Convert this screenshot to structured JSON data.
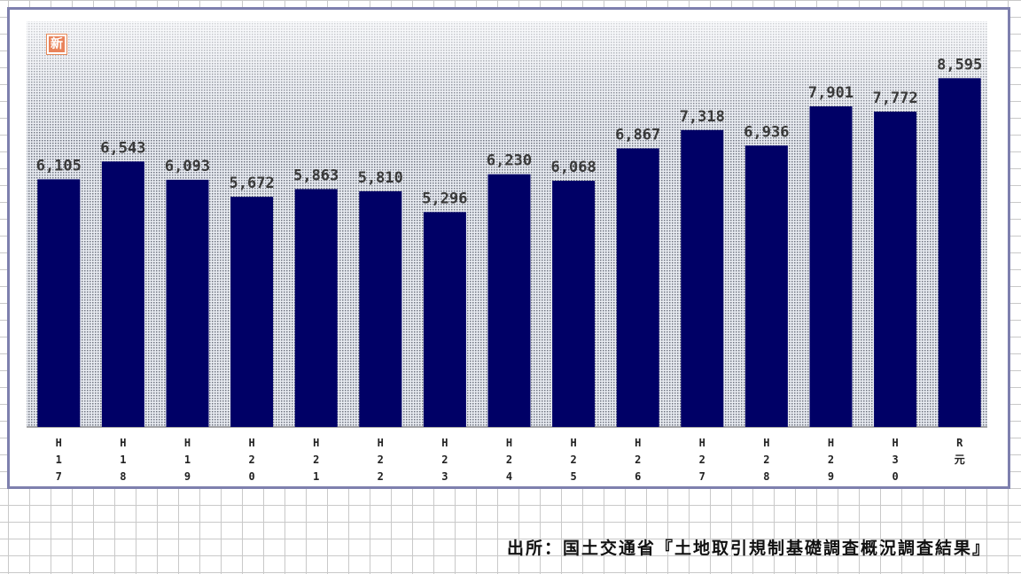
{
  "logo": {
    "glyph": "新"
  },
  "source": "出所：国土交通省『土地取引規制基礎調査概況調査結果』",
  "colors": {
    "bar": "#000066",
    "frame": "#7e80ae",
    "plot_dot": "#6f7480"
  },
  "chart_data": {
    "type": "bar",
    "title": "",
    "xlabel": "",
    "ylabel": "",
    "categories": [
      "H17",
      "H18",
      "H19",
      "H20",
      "H21",
      "H22",
      "H23",
      "H24",
      "H25",
      "H26",
      "H27",
      "H28",
      "H29",
      "H30",
      "R元"
    ],
    "tick_labels": [
      [
        "H",
        "1",
        "7"
      ],
      [
        "H",
        "1",
        "8"
      ],
      [
        "H",
        "1",
        "9"
      ],
      [
        "H",
        "2",
        "0"
      ],
      [
        "H",
        "2",
        "1"
      ],
      [
        "H",
        "2",
        "2"
      ],
      [
        "H",
        "2",
        "3"
      ],
      [
        "H",
        "2",
        "4"
      ],
      [
        "H",
        "2",
        "5"
      ],
      [
        "H",
        "2",
        "6"
      ],
      [
        "H",
        "2",
        "7"
      ],
      [
        "H",
        "2",
        "8"
      ],
      [
        "H",
        "2",
        "9"
      ],
      [
        "H",
        "3",
        "0"
      ],
      [
        "R",
        "元"
      ]
    ],
    "values": [
      6105,
      6543,
      6093,
      5672,
      5863,
      5810,
      5296,
      6230,
      6068,
      6867,
      7318,
      6936,
      7901,
      7772,
      8595
    ],
    "value_labels": [
      "6,105",
      "6,543",
      "6,093",
      "5,672",
      "5,863",
      "5,810",
      "5,296",
      "6,230",
      "6,068",
      "6,867",
      "7,318",
      "6,936",
      "7,901",
      "7,772",
      "8,595"
    ],
    "grid": false,
    "legend": "none"
  }
}
